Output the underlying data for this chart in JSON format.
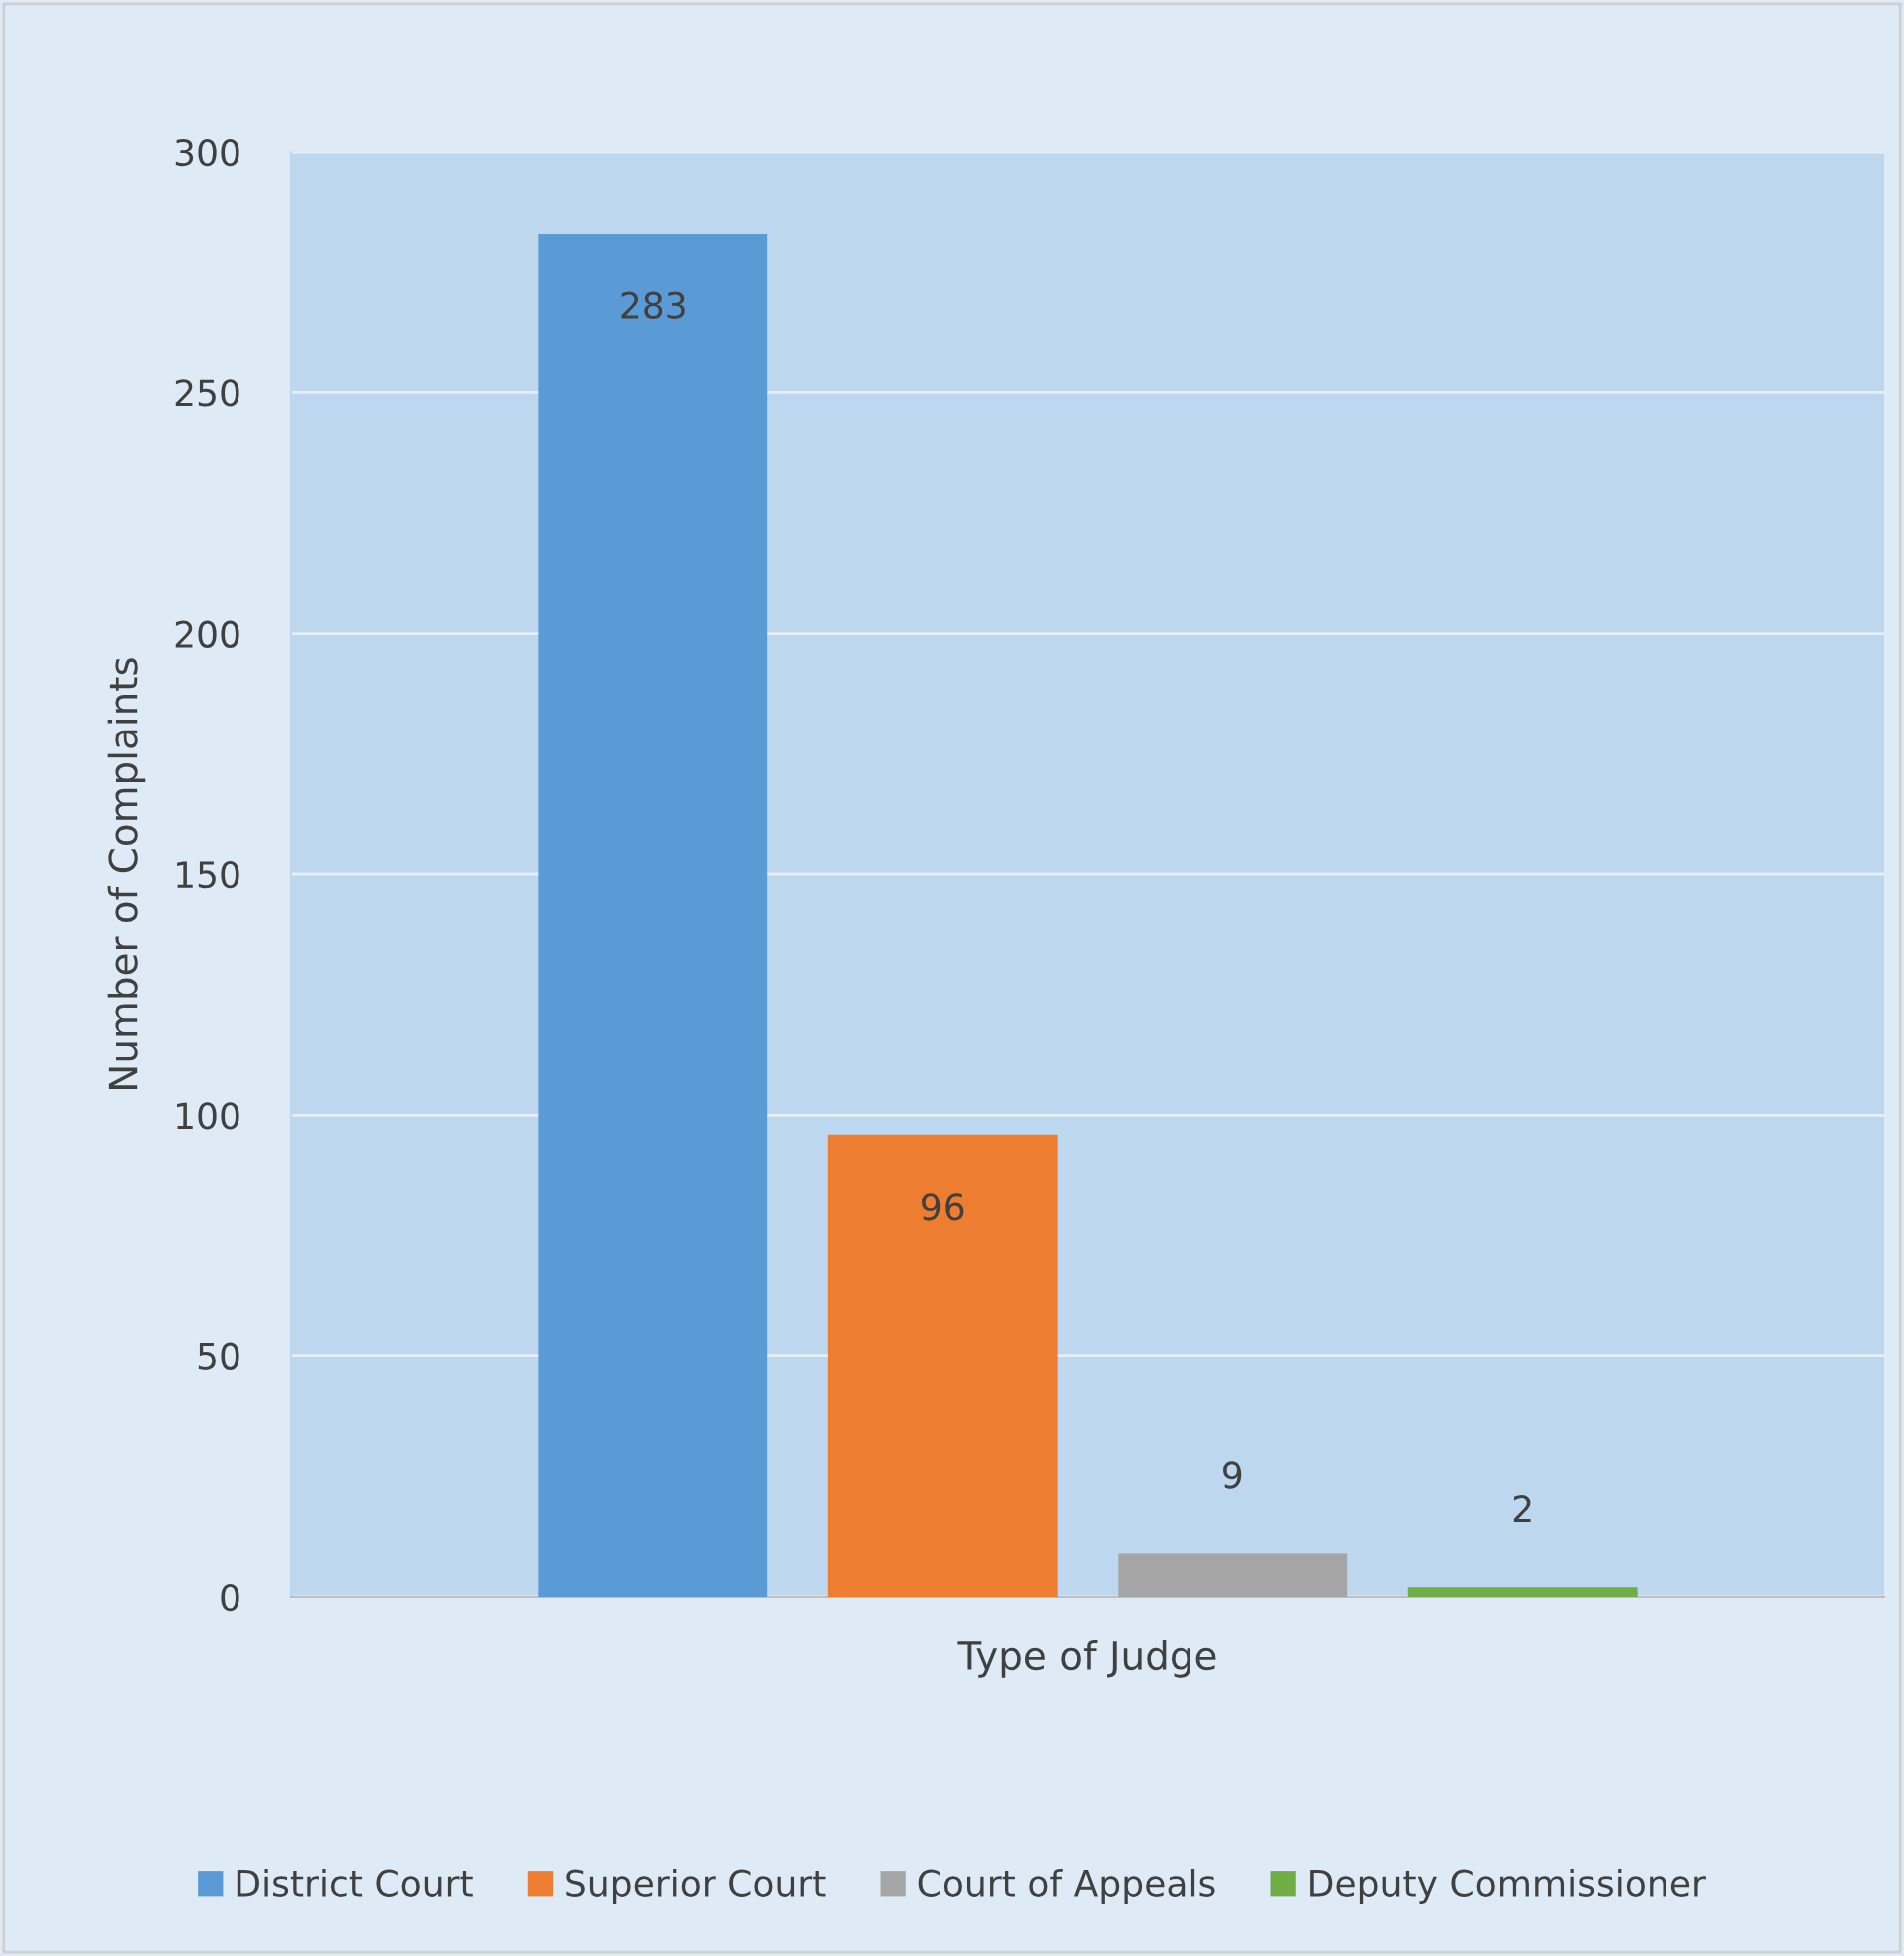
{
  "chart_data": {
    "type": "bar",
    "xlabel": "Type of Judge",
    "ylabel": "Number of Complaints",
    "categories": [
      null
    ],
    "series": [
      {
        "name": "District Court",
        "color": "#5b9bd5",
        "values": [
          283
        ]
      },
      {
        "name": "Superior Court",
        "color": "#ed7d31",
        "values": [
          96
        ]
      },
      {
        "name": "Court of Appeals",
        "color": "#a5a5a5",
        "values": [
          9
        ]
      },
      {
        "name": "Deputy Commissioner",
        "color": "#70ad47",
        "values": [
          2
        ]
      }
    ],
    "ylim": [
      0,
      300
    ],
    "yticks": [
      0,
      50,
      100,
      150,
      200,
      250,
      300
    ],
    "grid": "y",
    "legend": "bottom",
    "data_labels": true
  }
}
